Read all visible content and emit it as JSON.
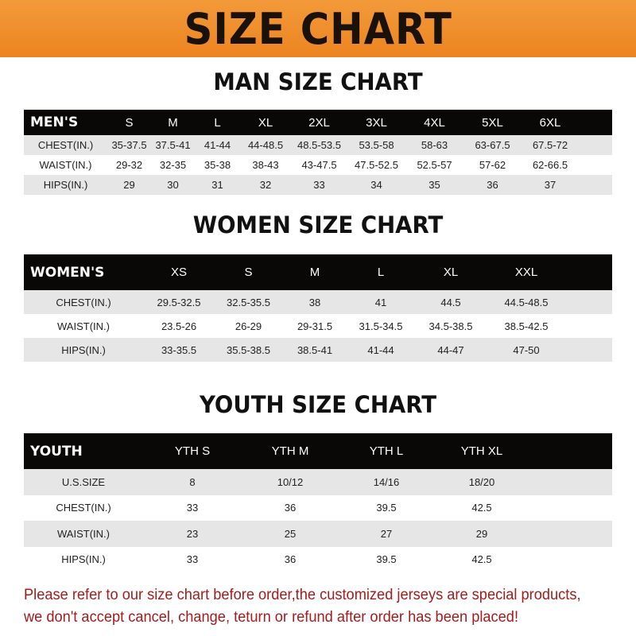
{
  "banner": {
    "title": "SIZE CHART",
    "color": "#ee8a26"
  },
  "men": {
    "title": "MAN SIZE CHART",
    "header": [
      "MEN'S",
      "S",
      "M",
      "L",
      "XL",
      "2XL",
      "3XL",
      "4XL",
      "5XL",
      "6XL"
    ],
    "rows": [
      [
        "CHEST(IN.)",
        "35-37.5",
        "37.5-41",
        "41-44",
        "44-48.5",
        "48.5-53.5",
        "53.5-58",
        "58-63",
        "63-67.5",
        "67.5-72"
      ],
      [
        "WAIST(IN.)",
        "29-32",
        "32-35",
        "35-38",
        "38-43",
        "43-47.5",
        "47.5-52.5",
        "52.5-57",
        "57-62",
        "62-66.5"
      ],
      [
        "HIPS(IN.)",
        "29",
        "30",
        "31",
        "32",
        "33",
        "34",
        "35",
        "36",
        "37"
      ]
    ]
  },
  "women": {
    "title": "WOMEN SIZE CHART",
    "header": [
      "WOMEN'S",
      "XS",
      "S",
      "M",
      "L",
      "XL",
      "XXL"
    ],
    "rows": [
      [
        "CHEST(IN.)",
        "29.5-32.5",
        "32.5-35.5",
        "38",
        "41",
        "44.5",
        "44.5-48.5"
      ],
      [
        "WAIST(IN.)",
        "23.5-26",
        "26-29",
        "29-31.5",
        "31.5-34.5",
        "34.5-38.5",
        "38.5-42.5"
      ],
      [
        "HIPS(IN.)",
        "33-35.5",
        "35.5-38.5",
        "38.5-41",
        "41-44",
        "44-47",
        "47-50"
      ]
    ]
  },
  "youth": {
    "title": "YOUTH SIZE CHART",
    "header": [
      "YOUTH",
      "YTH S",
      "YTH M",
      "YTH L",
      "YTH XL"
    ],
    "rows": [
      [
        "U.S.SIZE",
        "8",
        "10/12",
        "14/16",
        "18/20"
      ],
      [
        "CHEST(IN.)",
        "33",
        "36",
        "39.5",
        "42.5"
      ],
      [
        "WAIST(IN.)",
        "23",
        "25",
        "27",
        "29"
      ],
      [
        "HIPS(IN.)",
        "33",
        "36",
        "39.5",
        "42.5"
      ]
    ]
  },
  "note": {
    "line1": "Please refer to our size chart before order,the customized jerseys are special products,",
    "line2": "we don't accept cancel, change, teturn or refund after order has been placed!",
    "color": "#a61b1b"
  }
}
